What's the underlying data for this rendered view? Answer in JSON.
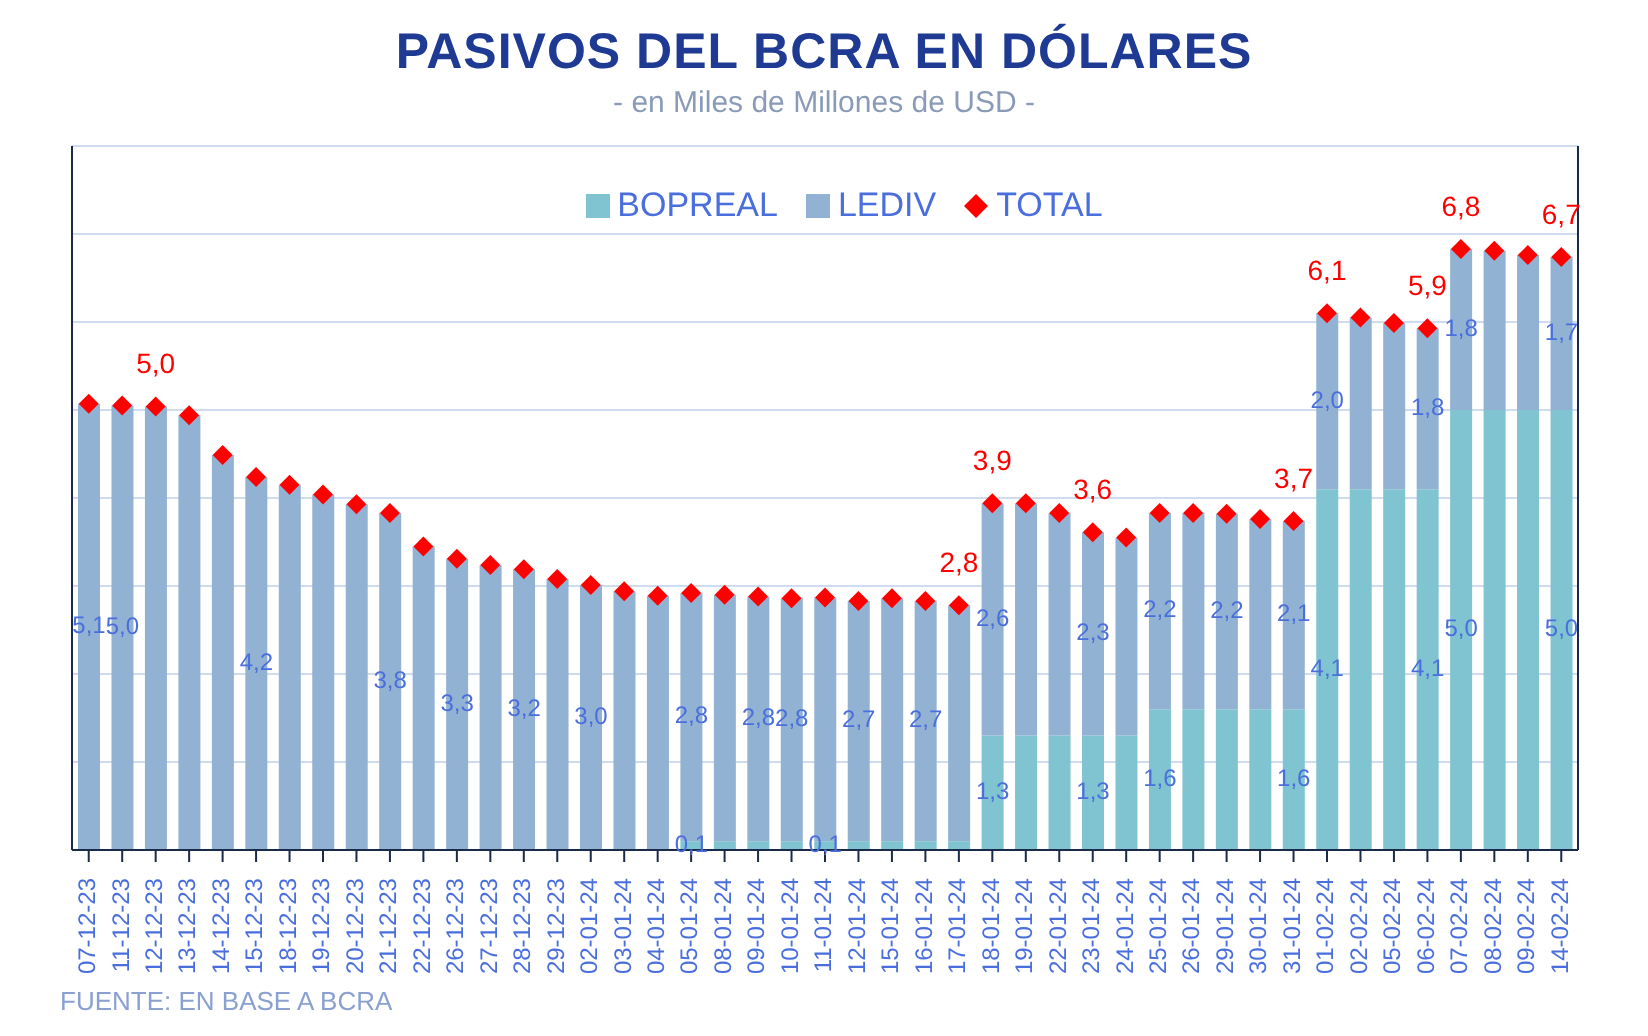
{
  "chart_data": {
    "type": "bar",
    "title": "PASIVOS DEL BCRA EN DÓLARES",
    "subtitle": "- en Miles de Millones de USD -",
    "annotations": [
      "FUENTE: EN BASE A BCRA"
    ],
    "categories": [
      "07-12-23",
      "11-12-23",
      "12-12-23",
      "13-12-23",
      "14-12-23",
      "15-12-23",
      "18-12-23",
      "19-12-23",
      "20-12-23",
      "21-12-23",
      "22-12-23",
      "26-12-23",
      "27-12-23",
      "28-12-23",
      "29-12-23",
      "02-01-24",
      "03-01-24",
      "04-01-24",
      "05-01-24",
      "08-01-24",
      "09-01-24",
      "10-01-24",
      "11-01-24",
      "12-01-24",
      "15-01-24",
      "16-01-24",
      "17-01-24",
      "18-01-24",
      "19-01-24",
      "22-01-24",
      "23-01-24",
      "24-01-24",
      "25-01-24",
      "26-01-24",
      "29-01-24",
      "30-01-24",
      "31-01-24",
      "01-02-24",
      "02-02-24",
      "05-02-24",
      "06-02-24",
      "07-02-24",
      "08-02-24",
      "09-02-24",
      "14-02-24"
    ],
    "stacked": true,
    "ylim": [
      0,
      8
    ],
    "yticks": [
      {
        "value": 0,
        "label": null
      },
      {
        "value": 1,
        "label": null
      },
      {
        "value": 2,
        "label": null
      },
      {
        "value": 3,
        "label": null
      },
      {
        "value": 4,
        "label": null
      },
      {
        "value": 5,
        "label": null
      },
      {
        "value": 6,
        "label": null
      },
      {
        "value": 7,
        "label": null
      },
      {
        "value": 8,
        "label": null
      }
    ],
    "tick_labels": "x",
    "grid": "y",
    "legend": "top",
    "marker": "diamond",
    "series": [
      {
        "name": "BOPREAL",
        "color": "#7fc4d0",
        "values": [
          null,
          null,
          null,
          null,
          null,
          null,
          null,
          null,
          null,
          null,
          null,
          null,
          null,
          null,
          null,
          null,
          null,
          null,
          0.1,
          0.1,
          0.1,
          0.1,
          0.1,
          0.1,
          0.1,
          0.1,
          0.1,
          1.3,
          1.3,
          1.3,
          1.3,
          1.3,
          1.6,
          1.6,
          1.6,
          1.6,
          1.6,
          4.1,
          4.1,
          4.1,
          4.1,
          5.0,
          5.0,
          5.0,
          5.0
        ],
        "value_labels": [
          null,
          null,
          null,
          null,
          null,
          null,
          null,
          null,
          null,
          null,
          null,
          null,
          null,
          null,
          null,
          null,
          null,
          null,
          "0,1",
          null,
          null,
          null,
          "0,1",
          null,
          null,
          null,
          null,
          "1,3",
          null,
          null,
          "1,3",
          null,
          "1,6",
          null,
          null,
          null,
          "1,6",
          "4,1",
          null,
          null,
          "4,1",
          "5,0",
          null,
          null,
          "5,0"
        ]
      },
      {
        "name": "LEDIV",
        "color": "#92b2d3",
        "values": [
          5.07,
          5.05,
          5.04,
          4.94,
          4.49,
          4.24,
          4.15,
          4.04,
          3.93,
          3.83,
          3.45,
          3.31,
          3.24,
          3.19,
          3.08,
          3.01,
          2.94,
          2.89,
          2.82,
          2.8,
          2.78,
          2.76,
          2.77,
          2.73,
          2.76,
          2.73,
          2.68,
          2.64,
          2.64,
          2.53,
          2.31,
          2.25,
          2.23,
          2.23,
          2.22,
          2.16,
          2.14,
          2.0,
          1.95,
          1.89,
          1.83,
          1.83,
          1.81,
          1.76,
          1.74
        ],
        "value_labels": [
          "5,1",
          "5,0",
          null,
          null,
          null,
          "4,2",
          null,
          null,
          null,
          "3,8",
          null,
          "3,3",
          null,
          "3,2",
          null,
          "3,0",
          null,
          null,
          "2,8",
          null,
          "2,8",
          "2,8",
          null,
          "2,7",
          null,
          "2,7",
          null,
          "2,6",
          null,
          null,
          "2,3",
          null,
          "2,2",
          null,
          "2,2",
          null,
          "2,1",
          "2,0",
          null,
          null,
          "1,8",
          "1,8",
          null,
          null,
          "1,7"
        ]
      },
      {
        "name": "TOTAL",
        "type": "scatter",
        "color": "#ff0000",
        "values": [
          5.07,
          5.05,
          5.04,
          4.94,
          4.49,
          4.24,
          4.15,
          4.04,
          3.93,
          3.83,
          3.45,
          3.31,
          3.24,
          3.19,
          3.08,
          3.01,
          2.94,
          2.89,
          2.92,
          2.9,
          2.88,
          2.86,
          2.87,
          2.83,
          2.86,
          2.83,
          2.78,
          3.94,
          3.94,
          3.83,
          3.61,
          3.55,
          3.83,
          3.83,
          3.82,
          3.76,
          3.74,
          6.1,
          6.05,
          5.99,
          5.93,
          6.83,
          6.81,
          6.76,
          6.74
        ],
        "value_labels": [
          null,
          null,
          "5,0",
          null,
          null,
          null,
          null,
          null,
          null,
          null,
          null,
          null,
          null,
          null,
          null,
          null,
          null,
          null,
          null,
          null,
          null,
          null,
          null,
          null,
          null,
          null,
          "2,8",
          "3,9",
          null,
          null,
          "3,6",
          null,
          null,
          null,
          null,
          null,
          "3,7",
          "6,1",
          null,
          null,
          "5,9",
          "6,8",
          null,
          null,
          "6,7"
        ]
      }
    ]
  }
}
